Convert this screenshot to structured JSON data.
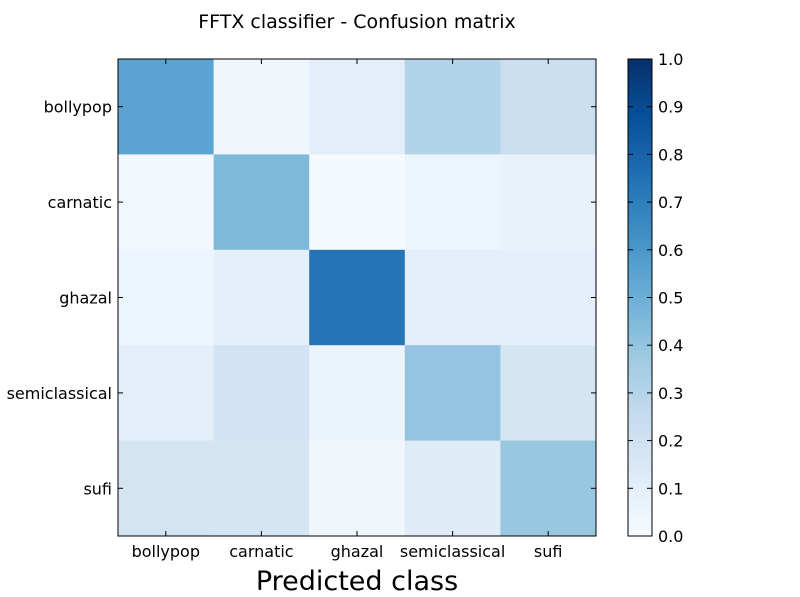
{
  "chart_data": {
    "type": "heatmap",
    "title": "FFTX classifier - Confusion matrix",
    "xlabel": "Predicted class",
    "ylabel": "",
    "rows": [
      "bollypop",
      "carnatic",
      "ghazal",
      "semiclassical",
      "sufi"
    ],
    "columns": [
      "bollypop",
      "carnatic",
      "ghazal",
      "semiclassical",
      "sufi"
    ],
    "values": [
      [
        0.55,
        0.04,
        0.1,
        0.31,
        0.23
      ],
      [
        0.03,
        0.45,
        0.01,
        0.05,
        0.07
      ],
      [
        0.05,
        0.09,
        0.74,
        0.1,
        0.09
      ],
      [
        0.1,
        0.19,
        0.06,
        0.4,
        0.17
      ],
      [
        0.18,
        0.17,
        0.04,
        0.12,
        0.39
      ]
    ],
    "colormap": "Blues",
    "colorbar": {
      "range": [
        0.0,
        1.0
      ],
      "ticks": [
        "0.0",
        "0.1",
        "0.2",
        "0.3",
        "0.4",
        "0.5",
        "0.6",
        "0.7",
        "0.8",
        "0.9",
        "1.0"
      ]
    },
    "grid": false
  }
}
